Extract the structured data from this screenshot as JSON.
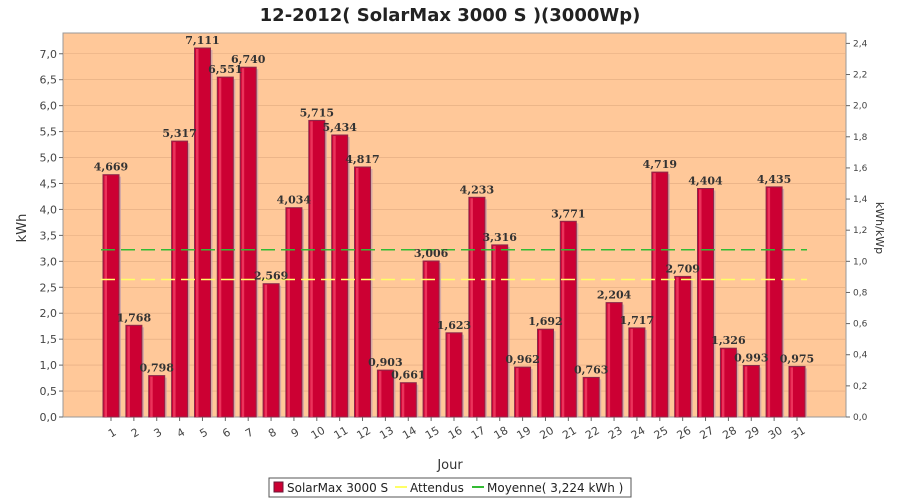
{
  "chart_data": {
    "type": "bar",
    "title": "12-2012( SolarMax 3000 S )(3000Wp)",
    "xlabel": "Jour",
    "ylabel": "kWh",
    "ylabel_right": "kWh/kWp",
    "categories": [
      "1",
      "2",
      "3",
      "4",
      "5",
      "6",
      "7",
      "8",
      "9",
      "10",
      "11",
      "12",
      "13",
      "14",
      "15",
      "16",
      "17",
      "18",
      "19",
      "20",
      "21",
      "22",
      "23",
      "24",
      "25",
      "26",
      "27",
      "28",
      "29",
      "30",
      "31"
    ],
    "values": [
      4.669,
      1.768,
      0.798,
      5.317,
      7.111,
      6.551,
      6.74,
      2.569,
      4.034,
      5.715,
      5.434,
      4.817,
      0.903,
      0.661,
      3.006,
      1.623,
      4.233,
      3.316,
      0.962,
      1.692,
      3.771,
      0.763,
      2.204,
      1.717,
      4.719,
      2.709,
      4.404,
      1.326,
      0.993,
      4.435,
      0.975
    ],
    "value_labels": [
      "4,669",
      "1,768",
      "0,798",
      "5,317",
      "7,111",
      "6,551",
      "6,740",
      "2,569",
      "4,034",
      "5,715",
      "5,434",
      "4,817",
      "0,903",
      "0,661",
      "3,006",
      "1,623",
      "4,233",
      "3,316",
      "0,962",
      "1,692",
      "3,771",
      "0,763",
      "2,204",
      "1,717",
      "4,719",
      "2,709",
      "4,404",
      "1,326",
      "0,993",
      "4,435",
      "0,975"
    ],
    "ylim": [
      0,
      7.4
    ],
    "yticks": [
      "0,0",
      "0,5",
      "1,0",
      "1,5",
      "2,0",
      "2,5",
      "3,0",
      "3,5",
      "4,0",
      "4,5",
      "5,0",
      "5,5",
      "6,0",
      "6,5",
      "7,0"
    ],
    "ylim_right": [
      0,
      2.4667
    ],
    "yticks_right": [
      "0,0",
      "0,2",
      "0,4",
      "0,6",
      "0,8",
      "1,0",
      "1,2",
      "1,4",
      "1,6",
      "1,8",
      "2,0",
      "2,2",
      "2,4"
    ],
    "attendus_value": 2.65,
    "moyenne_value": 3.224,
    "legend": {
      "position": "bottom",
      "items": [
        "SolarMax 3000 S",
        "Attendus",
        "Moyenne( 3,224 kWh )"
      ]
    },
    "colors": {
      "plot_background": "#ffc899",
      "bar": "#cc0033",
      "bar_border": "#8a2a4a",
      "attendus_line": "#ffff66",
      "moyenne_line": "#33bb33"
    }
  }
}
